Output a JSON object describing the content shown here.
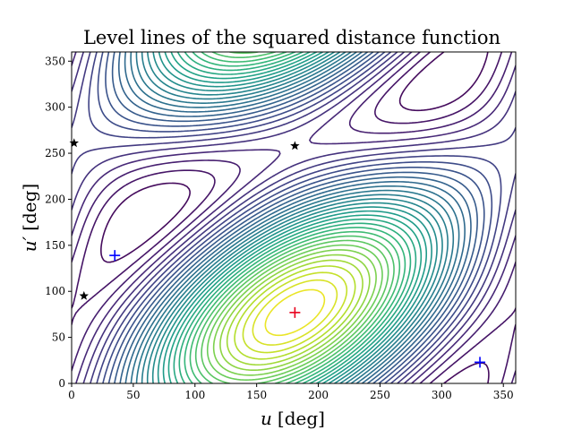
{
  "chart_data": {
    "type": "contour",
    "title": "Level lines of the squared distance function",
    "xlabel_var": "u",
    "xlabel_unit": "[deg]",
    "ylabel_var": "u′",
    "ylabel_unit": "[deg]",
    "xlim": [
      0,
      360
    ],
    "ylim": [
      0,
      360
    ],
    "xticks": [
      0,
      50,
      100,
      150,
      200,
      250,
      300,
      350
    ],
    "yticks": [
      0,
      50,
      100,
      150,
      200,
      250,
      300,
      350
    ],
    "grid": false,
    "colormap": "viridis",
    "colors": {
      "min_marker": "#e8001c",
      "plus_marker": "#0000ff",
      "star_marker": "#000000"
    },
    "markers": {
      "minimum": [
        {
          "x": 181,
          "y": 77
        }
      ],
      "plus": [
        {
          "x": 35,
          "y": 139
        },
        {
          "x": 331,
          "y": 23
        }
      ],
      "star": [
        {
          "x": 2,
          "y": 261
        },
        {
          "x": 181,
          "y": 258
        },
        {
          "x": 10,
          "y": 95
        }
      ]
    }
  }
}
